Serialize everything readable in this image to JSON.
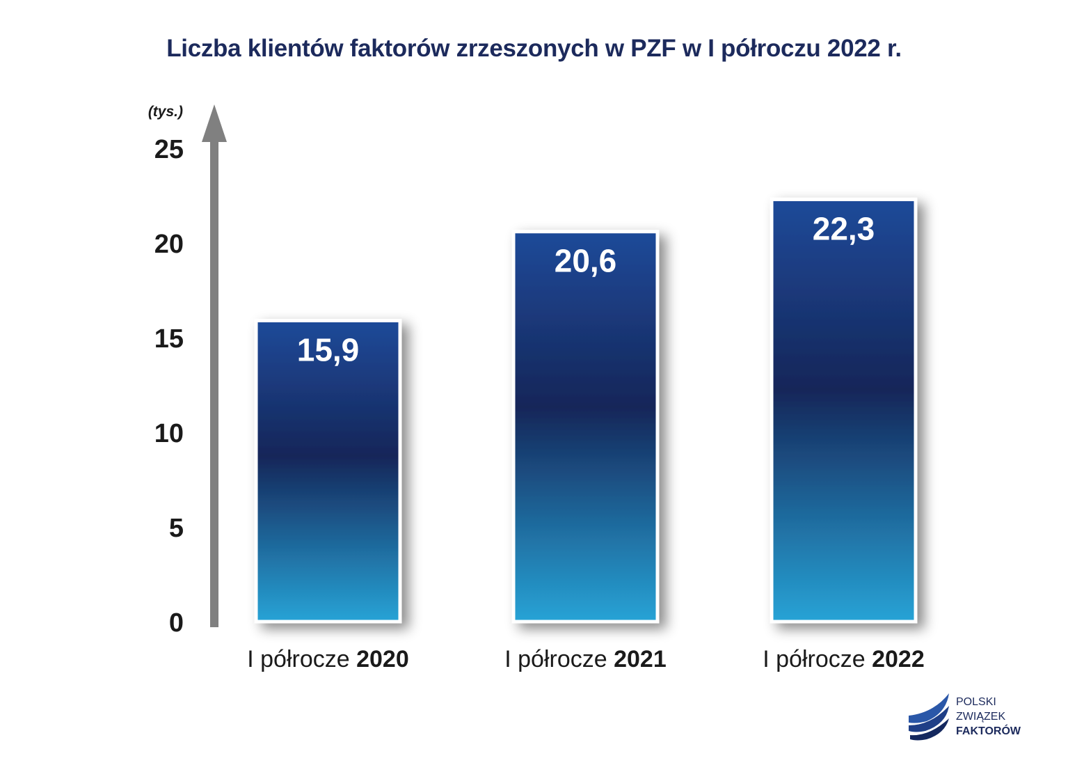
{
  "title": "Liczba klientów faktorów zrzeszonych w PZF w I półroczu 2022 r.",
  "logo": {
    "line1": "POLSKI",
    "line2": "ZWIĄZEK",
    "line3": "FAKTORÓW"
  },
  "colors": {
    "title": "#1c2a5c",
    "bar_top": "#1f4a99",
    "bar_mid": "#152659",
    "bar_bottom": "#27a3d6",
    "axis": "#808080"
  },
  "chart_data": {
    "type": "bar",
    "unit_label": "(tys.)",
    "categories": [
      {
        "prefix": "I półrocze ",
        "year": "2020"
      },
      {
        "prefix": "I półrocze ",
        "year": "2021"
      },
      {
        "prefix": "I półrocze ",
        "year": "2022"
      }
    ],
    "values": [
      15.9,
      20.6,
      22.3
    ],
    "value_labels": [
      "15,9",
      "20,6",
      "22,3"
    ],
    "yticks": [
      "0",
      "5",
      "10",
      "15",
      "20",
      "25"
    ],
    "ylim": [
      0,
      25
    ],
    "grid": false,
    "legend": "none"
  }
}
